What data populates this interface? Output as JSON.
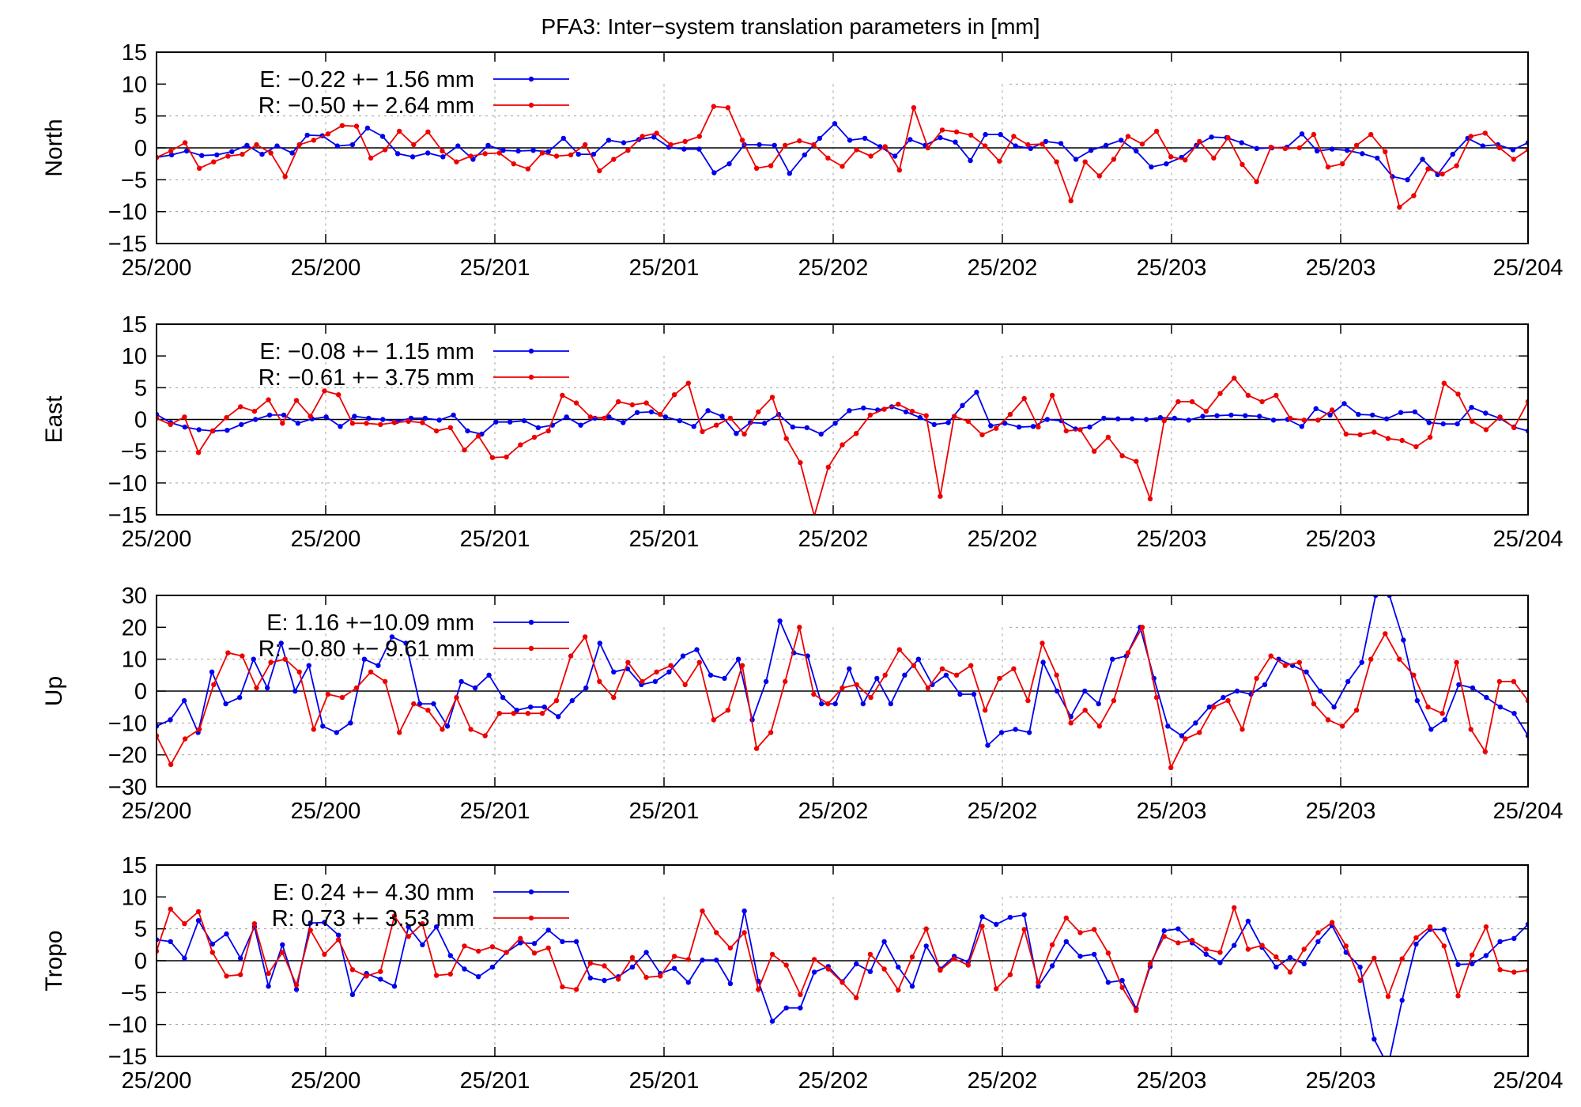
{
  "title": "PFA3: Inter−system translation parameters in [mm]",
  "colors": {
    "E": "#0000ee",
    "R": "#ee0000",
    "axis": "#000000",
    "grid": "#a0a0a0"
  },
  "chart_data": [
    {
      "type": "line",
      "ylabel": "North",
      "ylim": [
        -15,
        15
      ],
      "yticks": [
        "15",
        "10",
        "5",
        "0",
        "−5",
        "−10",
        "−15"
      ],
      "xticks": [
        "25/200",
        "25/200",
        "25/201",
        "25/201",
        "25/202",
        "25/202",
        "25/203",
        "25/203",
        "25/204"
      ],
      "grid": true,
      "legend_position": "top-left",
      "series": [
        {
          "name": "E:  −0.22 +− 1.56 mm",
          "values": [
            -1.5,
            -1.1,
            -0.5,
            -1.2,
            -1.1,
            -0.6,
            0.4,
            -1.0,
            0.3,
            -0.8,
            2.0,
            1.9,
            0.3,
            0.5,
            3.1,
            1.8,
            -0.9,
            -1.4,
            -0.8,
            -1.4,
            0.3,
            -1.8,
            0.4,
            -0.4,
            -0.5,
            -0.4,
            -0.6,
            1.5,
            -1.0,
            -1.0,
            1.2,
            0.8,
            1.3,
            1.7,
            0.1,
            -0.2,
            -0.2,
            -3.9,
            -2.5,
            0.5,
            0.5,
            0.4,
            -4.0,
            -1.1,
            1.5,
            3.8,
            1.2,
            1.5,
            0.2,
            -1.3,
            1.3,
            0.4,
            1.6,
            0.9,
            -2.0,
            2.1,
            2.1,
            0.3,
            -0.1,
            1.0,
            0.7,
            -1.8,
            -0.4,
            0.4,
            1.2,
            -0.5,
            -3.0,
            -2.5,
            -1.5,
            0.4,
            1.7,
            1.6,
            0.8,
            -0.1,
            0.0,
            0.1,
            2.2,
            -0.5,
            -0.2,
            -0.4,
            -0.9,
            -1.6,
            -4.5,
            -5.0,
            -1.8,
            -4.2,
            -1.0,
            1.5,
            0.3,
            0.5,
            -0.3,
            0.8
          ]
        },
        {
          "name": "R:  −0.50 +− 2.64 mm",
          "values": [
            -1.5,
            -0.5,
            0.8,
            -3.2,
            -2.2,
            -1.3,
            -1.0,
            0.5,
            -0.8,
            -4.5,
            0.5,
            1.2,
            2.2,
            3.5,
            3.4,
            -1.6,
            -0.3,
            2.6,
            0.5,
            2.5,
            -0.5,
            -2.2,
            -1.3,
            -0.9,
            -0.8,
            -2.5,
            -3.3,
            -0.8,
            -1.3,
            -1.1,
            0.5,
            -3.6,
            -1.8,
            -0.4,
            1.8,
            2.3,
            0.5,
            1.0,
            1.8,
            6.5,
            6.3,
            1.2,
            -3.2,
            -2.8,
            0.4,
            1.1,
            0.5,
            -1.6,
            -2.9,
            -0.3,
            -1.3,
            0.2,
            -3.5,
            6.3,
            0.0,
            2.8,
            2.5,
            2.0,
            0.3,
            -2.1,
            1.8,
            0.5,
            0.6,
            -2.2,
            -8.3,
            -2.2,
            -4.4,
            -1.8,
            1.8,
            0.6,
            2.6,
            -1.4,
            -1.9,
            1.0,
            -1.6,
            1.6,
            -2.6,
            -5.3,
            0.1,
            -0.1,
            0.0,
            2.1,
            -3.0,
            -2.5,
            0.4,
            2.1,
            -0.6,
            -9.3,
            -7.5,
            -3.3,
            -4.1,
            -2.8,
            1.8,
            2.3,
            0.0,
            -1.8,
            -0.3
          ]
        }
      ]
    },
    {
      "type": "line",
      "ylabel": "East",
      "ylim": [
        -15,
        15
      ],
      "yticks": [
        "15",
        "10",
        "5",
        "0",
        "−5",
        "−10",
        "−15"
      ],
      "xticks": [
        "25/200",
        "25/200",
        "25/201",
        "25/201",
        "25/202",
        "25/202",
        "25/203",
        "25/203",
        "25/204"
      ],
      "grid": true,
      "legend_position": "top-left",
      "series": [
        {
          "name": "E:  −0.08 +− 1.15 mm",
          "values": [
            0.8,
            -0.5,
            -1.2,
            -1.6,
            -1.8,
            -1.7,
            -0.8,
            0.0,
            0.7,
            0.7,
            -0.6,
            0.1,
            0.4,
            -1.1,
            0.5,
            0.2,
            0.0,
            -0.3,
            0.2,
            0.2,
            -0.1,
            0.7,
            -1.8,
            -2.3,
            -0.4,
            -0.4,
            -0.2,
            -1.3,
            -0.9,
            0.4,
            -0.9,
            0.2,
            0.4,
            -0.5,
            1.1,
            1.2,
            0.4,
            -0.2,
            -1.1,
            1.4,
            0.5,
            -2.2,
            -0.5,
            -0.6,
            0.8,
            -1.2,
            -1.3,
            -2.3,
            -0.6,
            1.4,
            1.8,
            1.5,
            2.0,
            1.2,
            0.3,
            -0.8,
            -0.5,
            2.2,
            4.3,
            -1.0,
            -0.6,
            -1.2,
            -1.1,
            0.0,
            -0.2,
            -1.5,
            -1.2,
            0.2,
            0.1,
            0.1,
            0.0,
            0.3,
            0.2,
            -0.1,
            0.5,
            0.6,
            0.7,
            0.6,
            0.5,
            -0.1,
            0.0,
            -1.1,
            1.7,
            0.7,
            2.5,
            0.8,
            0.7,
            0.1,
            1.1,
            1.2,
            -0.5,
            -0.7,
            -0.7,
            1.9,
            1.0,
            0.2,
            -1.2,
            -1.8
          ]
        },
        {
          "name": "R:  −0.61 +− 3.75 mm",
          "values": [
            0.2,
            -0.8,
            0.4,
            -5.2,
            -1.8,
            0.3,
            2.0,
            1.3,
            3.1,
            -0.6,
            3.0,
            0.5,
            4.5,
            3.9,
            -0.6,
            -0.6,
            -0.8,
            -0.5,
            -0.3,
            -0.5,
            -1.8,
            -1.3,
            -4.8,
            -2.6,
            -6.0,
            -5.9,
            -4.0,
            -2.8,
            -1.8,
            3.8,
            2.6,
            0.4,
            0.2,
            2.8,
            2.3,
            2.6,
            0.8,
            3.9,
            5.7,
            -1.9,
            -0.9,
            0.2,
            -2.3,
            1.2,
            3.5,
            -3.0,
            -6.8,
            -15.2,
            -7.5,
            -4.0,
            -2.2,
            0.7,
            1.6,
            2.4,
            1.3,
            0.6,
            -12.1,
            0.5,
            -0.3,
            -2.4,
            -1.4,
            0.8,
            3.3,
            -1.2,
            3.8,
            -1.8,
            -1.6,
            -5.0,
            -2.8,
            -5.7,
            -6.6,
            -12.5,
            -0.2,
            2.8,
            2.8,
            1.3,
            4.1,
            6.5,
            3.8,
            2.8,
            3.8,
            0.2,
            -0.1,
            -0.1,
            1.5,
            -2.3,
            -2.4,
            -2.0,
            -3.0,
            -3.3,
            -4.3,
            -2.8,
            5.7,
            4.0,
            -0.3,
            -1.6,
            0.4,
            -1.3,
            2.8
          ]
        }
      ]
    },
    {
      "type": "line",
      "ylabel": "Up",
      "ylim": [
        -30,
        30
      ],
      "yticks": [
        "30",
        "20",
        "10",
        "0",
        "−10",
        "−20",
        "−30"
      ],
      "xticks": [
        "25/200",
        "25/200",
        "25/201",
        "25/201",
        "25/202",
        "25/202",
        "25/203",
        "25/203",
        "25/204"
      ],
      "grid": true,
      "legend_position": "top-left",
      "series": [
        {
          "name": "E:   1.16 +−10.09 mm",
          "values": [
            -11,
            -9,
            -3,
            -13,
            6,
            -4,
            -2,
            10,
            1,
            15,
            0,
            8,
            -11,
            -13,
            -10,
            10,
            8,
            17,
            15,
            -4,
            -4,
            -11,
            3,
            1,
            5,
            -2,
            -6,
            -5,
            -5,
            -8,
            -3,
            1,
            15,
            6,
            7,
            2,
            3,
            6,
            11,
            13,
            5,
            4,
            10,
            -9,
            3,
            22,
            12,
            11,
            -4,
            -4,
            7,
            -4,
            4,
            -4,
            5,
            10,
            2,
            5,
            -1,
            -1,
            -17,
            -13,
            -12,
            -13,
            9,
            0,
            -8,
            0,
            -4,
            10,
            11,
            20,
            4,
            -11,
            -14,
            -10,
            -5,
            -2,
            0,
            -1,
            2,
            10,
            8,
            6,
            0,
            -5,
            3,
            9,
            30,
            30,
            16,
            -3,
            -12,
            -9,
            2,
            1,
            -2,
            -5,
            -7,
            -14
          ]
        },
        {
          "name": "R:  −0.80 +− 9.61 mm",
          "values": [
            -14,
            -23,
            -15,
            -12,
            2,
            12,
            11,
            1,
            9,
            10,
            6,
            -12,
            -1,
            -2,
            1,
            6,
            3,
            -13,
            -4,
            -6,
            -12,
            -2,
            -12,
            -14,
            -7,
            -7,
            -7,
            -7,
            -3,
            11,
            17,
            3,
            -2,
            9,
            3,
            6,
            8,
            2,
            9,
            -9,
            -6,
            8,
            -18,
            -13,
            3,
            20,
            -1,
            -4,
            1,
            2,
            -2,
            5,
            13,
            8,
            1,
            7,
            5,
            8,
            -6,
            4,
            7,
            -3,
            15,
            5,
            -10,
            -6,
            -11,
            -3,
            12,
            20,
            -2,
            -24,
            -15,
            -13,
            -5,
            -3,
            -12,
            4,
            11,
            8,
            9,
            -4,
            -9,
            -11,
            -6,
            10,
            18,
            10,
            5,
            -5,
            -7,
            9,
            -12,
            -19,
            3,
            3,
            -3
          ]
        }
      ]
    },
    {
      "type": "line",
      "ylabel": "Tropo",
      "ylim": [
        -15,
        15
      ],
      "yticks": [
        "15",
        "10",
        "5",
        "0",
        "−5",
        "−10",
        "−15"
      ],
      "xticks": [
        "25/200",
        "25/200",
        "25/201",
        "25/201",
        "25/202",
        "25/202",
        "25/203",
        "25/203",
        "25/204"
      ],
      "grid": true,
      "legend_position": "top-left",
      "series": [
        {
          "name": "E:   0.24 +− 4.30 mm",
          "values": [
            3.3,
            3.0,
            0.4,
            6.3,
            2.6,
            4.2,
            0.4,
            5.3,
            -4.0,
            2.5,
            -4.5,
            5.9,
            6.0,
            4.0,
            -5.3,
            -2.0,
            -2.9,
            -4.0,
            5.3,
            2.5,
            5.3,
            0.8,
            -1.3,
            -2.5,
            -1.0,
            1.3,
            2.8,
            2.7,
            4.8,
            3.0,
            3.0,
            -2.7,
            -3.1,
            -2.5,
            -1.0,
            1.3,
            -2.0,
            -1.2,
            -3.4,
            0.1,
            0.1,
            -3.6,
            7.8,
            -3.2,
            -9.5,
            -7.4,
            -7.4,
            -1.8,
            -0.9,
            -3.3,
            -0.5,
            -1.7,
            3.0,
            -1.0,
            -4.0,
            2.3,
            -1.3,
            0.7,
            -0.2,
            6.9,
            5.7,
            6.8,
            7.2,
            -4.0,
            -0.8,
            3.0,
            0.7,
            1.0,
            -3.4,
            -3.1,
            -7.5,
            -0.9,
            4.7,
            5.0,
            2.8,
            1.0,
            -0.3,
            2.4,
            6.2,
            2.1,
            -1.0,
            0.5,
            -0.5,
            3.0,
            5.5,
            1.3,
            -1.0,
            -12.3,
            -16.5,
            -6.2,
            2.6,
            4.9,
            4.9,
            -0.6,
            -0.5,
            0.8,
            3.0,
            3.5,
            5.7
          ]
        },
        {
          "name": "R:   0.73 +− 3.53 mm",
          "values": [
            1.5,
            8.1,
            5.8,
            7.7,
            1.3,
            -2.4,
            -2.2,
            5.8,
            -2.0,
            1.3,
            -3.8,
            4.8,
            1.0,
            3.3,
            -1.4,
            -2.4,
            -1.7,
            7.0,
            3.8,
            5.8,
            -2.3,
            -2.1,
            2.3,
            1.5,
            2.2,
            1.3,
            3.5,
            1.2,
            2.0,
            -4.1,
            -4.5,
            -0.4,
            -0.8,
            -2.9,
            0.5,
            -2.6,
            -2.4,
            0.7,
            0.2,
            7.8,
            4.4,
            2.0,
            4.4,
            -4.5,
            1.0,
            -0.7,
            -5.3,
            0.2,
            -1.3,
            -3.4,
            -5.8,
            1.0,
            -1.3,
            -4.6,
            0.6,
            5.0,
            -1.5,
            0.3,
            -0.7,
            5.4,
            -4.4,
            -2.2,
            4.9,
            -3.4,
            2.5,
            6.7,
            4.4,
            4.9,
            1.2,
            -4.2,
            -7.8,
            -0.5,
            3.8,
            2.8,
            3.2,
            1.8,
            1.3,
            8.3,
            1.8,
            2.4,
            0.6,
            -1.8,
            1.8,
            4.4,
            6.0,
            2.3,
            -3.1,
            0.4,
            -5.6,
            0.3,
            3.6,
            5.3,
            2.3,
            -5.5,
            0.9,
            5.3,
            -1.4,
            -1.8,
            -1.5
          ]
        }
      ]
    }
  ]
}
